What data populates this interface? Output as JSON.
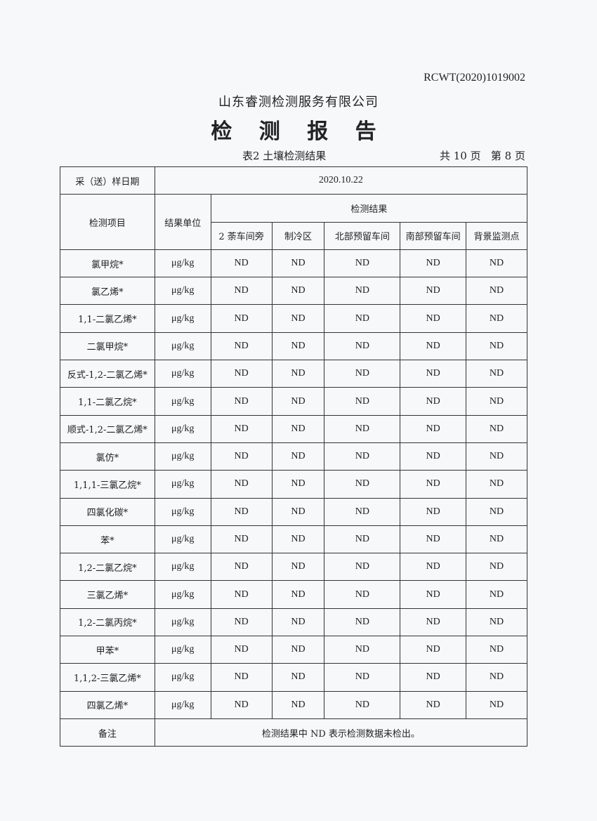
{
  "doc_no": "RCWT(2020)1019002",
  "company": "山东睿测检测服务有限公司",
  "title": "检 测 报 告",
  "table_name": "表2 土壤检测结果",
  "pages": "共 10 页   第 8 页",
  "sample_date_label": "采（送）样日期",
  "sample_date": "2020.10.22",
  "headers": {
    "item": "检测项目",
    "unit": "结果单位",
    "results": "检测结果",
    "sites": [
      "2 荼车间旁",
      "制冷区",
      "北部预留车间",
      "南部预留车间",
      "背景监测点"
    ]
  },
  "rows": [
    {
      "item": "氯甲烷*",
      "unit": "μg/kg",
      "values": [
        "ND",
        "ND",
        "ND",
        "ND",
        "ND"
      ]
    },
    {
      "item": "氯乙烯*",
      "unit": "μg/kg",
      "values": [
        "ND",
        "ND",
        "ND",
        "ND",
        "ND"
      ]
    },
    {
      "item": "1,1-二氯乙烯*",
      "unit": "μg/kg",
      "values": [
        "ND",
        "ND",
        "ND",
        "ND",
        "ND"
      ]
    },
    {
      "item": "二氯甲烷*",
      "unit": "μg/kg",
      "values": [
        "ND",
        "ND",
        "ND",
        "ND",
        "ND"
      ]
    },
    {
      "item": "反式-1,2-二氯乙烯*",
      "unit": "μg/kg",
      "values": [
        "ND",
        "ND",
        "ND",
        "ND",
        "ND"
      ]
    },
    {
      "item": "1,1-二氯乙烷*",
      "unit": "μg/kg",
      "values": [
        "ND",
        "ND",
        "ND",
        "ND",
        "ND"
      ]
    },
    {
      "item": "顺式-1,2-二氯乙烯*",
      "unit": "μg/kg",
      "values": [
        "ND",
        "ND",
        "ND",
        "ND",
        "ND"
      ]
    },
    {
      "item": "氯仿*",
      "unit": "μg/kg",
      "values": [
        "ND",
        "ND",
        "ND",
        "ND",
        "ND"
      ]
    },
    {
      "item": "1,1,1-三氯乙烷*",
      "unit": "μg/kg",
      "values": [
        "ND",
        "ND",
        "ND",
        "ND",
        "ND"
      ]
    },
    {
      "item": "四氯化碳*",
      "unit": "μg/kg",
      "values": [
        "ND",
        "ND",
        "ND",
        "ND",
        "ND"
      ]
    },
    {
      "item": "苯*",
      "unit": "μg/kg",
      "values": [
        "ND",
        "ND",
        "ND",
        "ND",
        "ND"
      ]
    },
    {
      "item": "1,2-二氯乙烷*",
      "unit": "μg/kg",
      "values": [
        "ND",
        "ND",
        "ND",
        "ND",
        "ND"
      ]
    },
    {
      "item": "三氯乙烯*",
      "unit": "μg/kg",
      "values": [
        "ND",
        "ND",
        "ND",
        "ND",
        "ND"
      ]
    },
    {
      "item": "1,2-二氯丙烷*",
      "unit": "μg/kg",
      "values": [
        "ND",
        "ND",
        "ND",
        "ND",
        "ND"
      ]
    },
    {
      "item": "甲苯*",
      "unit": "μg/kg",
      "values": [
        "ND",
        "ND",
        "ND",
        "ND",
        "ND"
      ]
    },
    {
      "item": "1,1,2-三氯乙烯*",
      "unit": "μg/kg",
      "values": [
        "ND",
        "ND",
        "ND",
        "ND",
        "ND"
      ]
    },
    {
      "item": "四氯乙烯*",
      "unit": "μg/kg",
      "values": [
        "ND",
        "ND",
        "ND",
        "ND",
        "ND"
      ]
    }
  ],
  "remark_label": "备注",
  "remark": "检测结果中 ND 表示检测数据未检出。"
}
